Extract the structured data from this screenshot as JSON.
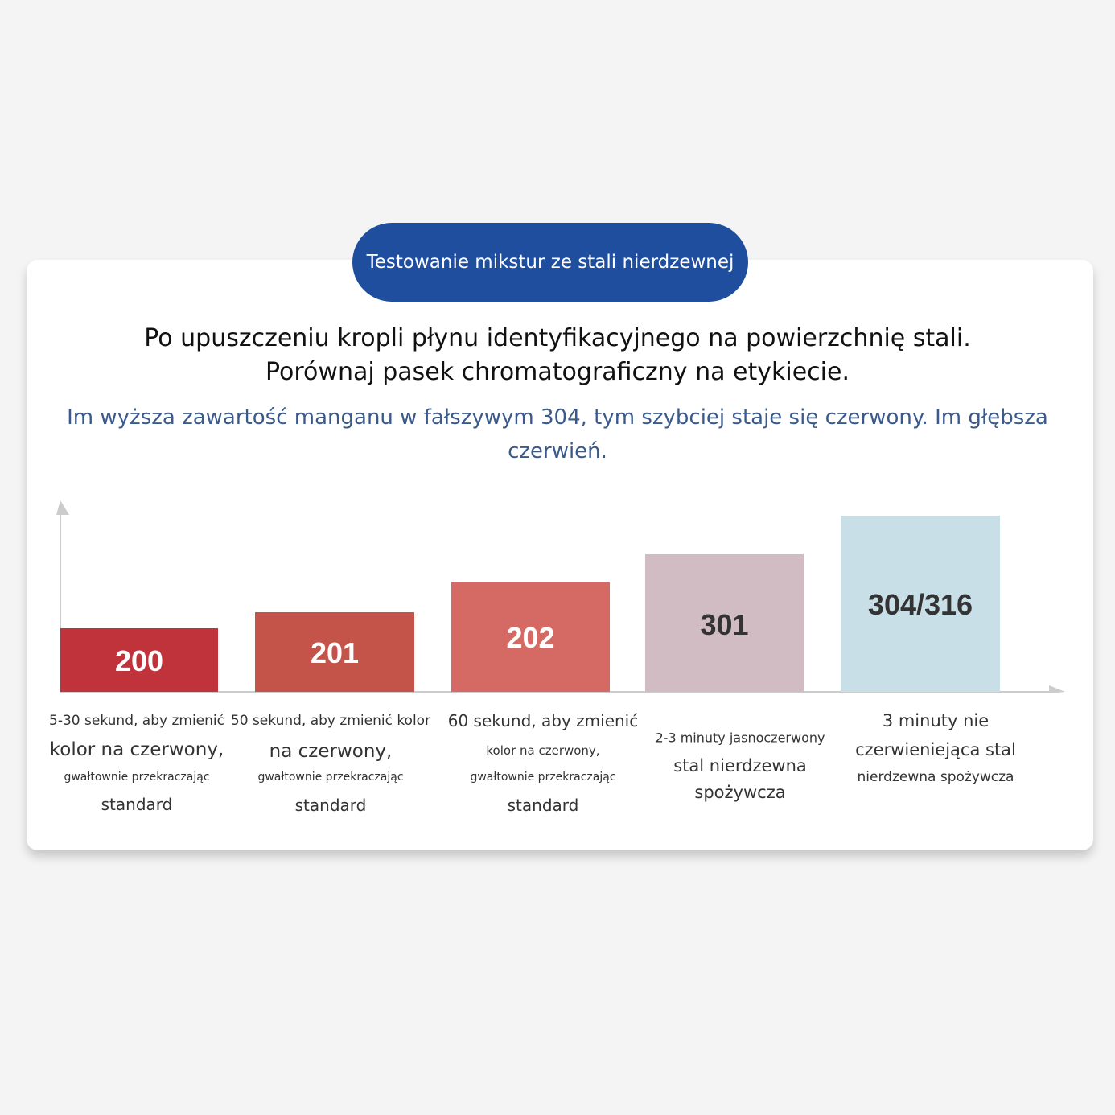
{
  "header": {
    "badge": "Testowanie mikstur ze stali nierdzewnej",
    "title": [
      "Po upuszczeniu kropli płynu identyfikacyjnego na powierzchnię stali.",
      "Porównaj pasek chromatograficzny na etykiecie."
    ],
    "subtitle": "Im wyższa zawartość manganu w fałszywym 304, tym szybciej staje się czerwony. Im głębsza czerwień."
  },
  "bars": [
    {
      "label": "200",
      "caption": [
        "5-30 sekund, aby zmienić",
        "kolor na czerwony,",
        "gwałtownie przekraczając",
        "standard"
      ]
    },
    {
      "label": "201",
      "caption": [
        "50 sekund, aby zmienić kolor",
        "na czerwony,",
        "gwałtownie przekraczając",
        "standard"
      ]
    },
    {
      "label": "202",
      "caption": [
        "60 sekund, aby zmienić",
        "kolor na czerwony,",
        "gwałtownie przekraczając",
        "standard"
      ]
    },
    {
      "label": "301",
      "caption": [
        "2-3 minuty jasnoczerwony",
        "stal nierdzewna",
        "spożywcza"
      ]
    },
    {
      "label": "304/316",
      "caption": [
        "3 minuty nie",
        "czerwieniejąca stal",
        "nierdzewna spożywcza"
      ]
    }
  ]
}
